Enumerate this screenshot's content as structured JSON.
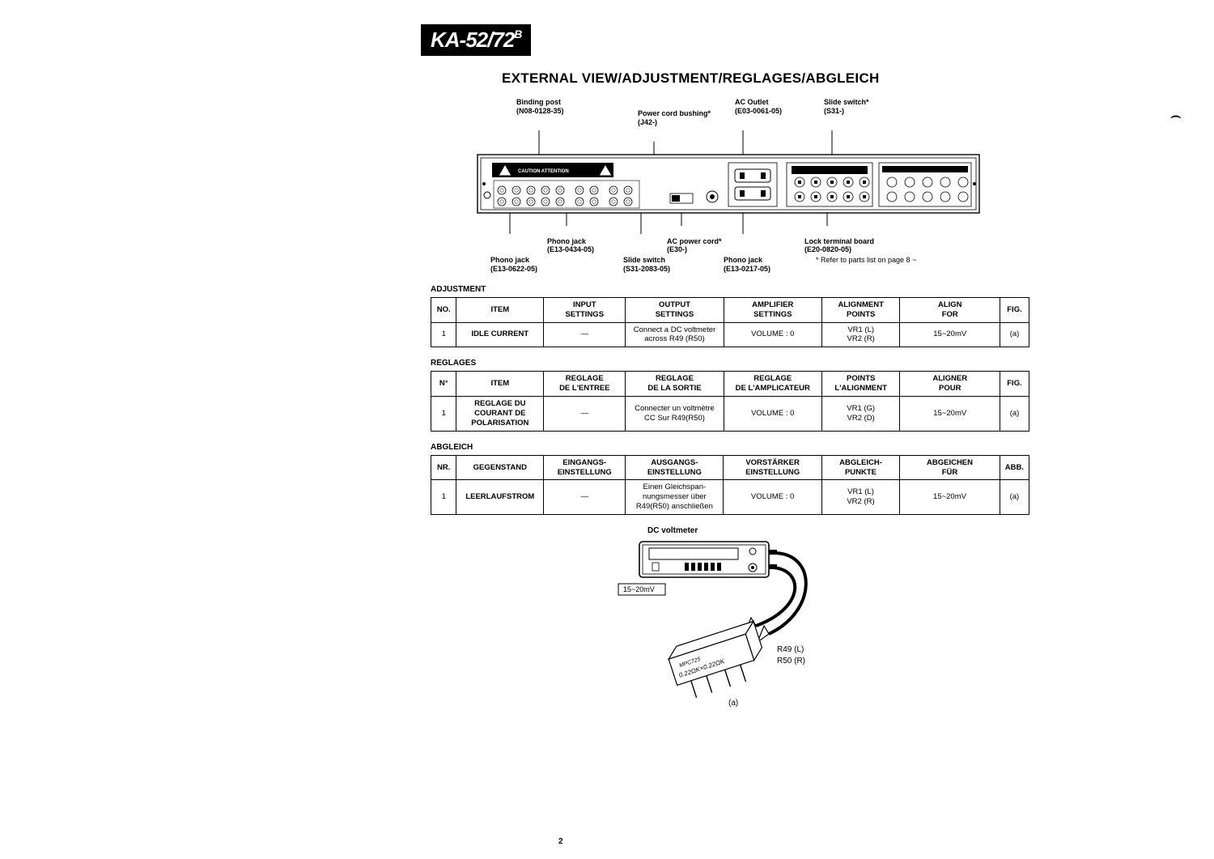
{
  "model_badge": "KA-52/72",
  "main_title": "EXTERNAL VIEW/ADJUSTMENT/REGLAGES/ABGLEICH",
  "page_number": "2",
  "footnote": "* Refer to parts list on page 8 ~",
  "rear_panel": {
    "top_callouts": [
      {
        "label": "Binding post",
        "part": "(N08-0128-35)"
      },
      {
        "label": "Power cord bushing*",
        "part": "(J42-)"
      },
      {
        "label": "AC Outlet",
        "part": "(E03-0061-05)"
      },
      {
        "label": "Slide switch*",
        "part": "(S31-)"
      }
    ],
    "bottom_callouts": [
      {
        "label": "Phono jack",
        "part": "(E13-0622-05)"
      },
      {
        "label": "Phono jack",
        "part": "(E13-0434-05)"
      },
      {
        "label": "Slide switch",
        "part": "(S31-2083-05)"
      },
      {
        "label": "AC power cord*",
        "part": "(E30-)"
      },
      {
        "label": "Phono jack",
        "part": "(E13-0217-05)"
      },
      {
        "label": "Lock terminal board",
        "part": "(E20-0820-05)"
      }
    ],
    "caution_label": "CAUTION",
    "attention_label": "ATTENTION"
  },
  "sections": [
    {
      "title": "ADJUSTMENT",
      "headers": [
        "NO.",
        "ITEM",
        "INPUT SETTINGS",
        "OUTPUT SETTINGS",
        "AMPLIFIER SETTINGS",
        "ALIGNMENT POINTS",
        "ALIGN FOR",
        "FIG."
      ],
      "rows": [
        {
          "no": "1",
          "item": "IDLE CURRENT",
          "in": "—",
          "out": "Connect a DC voltmeter across R49 (R50)",
          "amp": "VOLUME : 0",
          "pts": "VR1 (L)\nVR2 (R)",
          "for": "15~20mV",
          "fig": "(a)"
        }
      ]
    },
    {
      "title": "REGLAGES",
      "headers": [
        "N°",
        "ITEM",
        "REGLAGE DE L'ENTREE",
        "REGLAGE DE LA SORTIE",
        "REGLAGE DE L'AMPLICATEUR",
        "POINTS L'ALIGNMENT",
        "ALIGNER POUR",
        "FIG."
      ],
      "rows": [
        {
          "no": "1",
          "item": "REGLAGE DU COURANT DE POLARISATION",
          "in": "—",
          "out": "Connecter un voltmètre CC Sur R49(R50)",
          "amp": "VOLUME : 0",
          "pts": "VR1 (G)\nVR2 (D)",
          "for": "15~20mV",
          "fig": "(a)"
        }
      ]
    },
    {
      "title": "ABGLEICH",
      "headers": [
        "NR.",
        "GEGENSTAND",
        "EINGANGS-EINSTELLUNG",
        "AUSGANGS-EINSTELLUNG",
        "VORSTÄRKER EINSTELLUNG",
        "ABGLEICH-PUNKTE",
        "ABGEICHEN FÜR",
        "ABB."
      ],
      "rows": [
        {
          "no": "1",
          "item": "LEERLAUFSTROM",
          "in": "—",
          "out": "Einen Gleichspan-nungsmesser über R49(R50) anschließen",
          "amp": "VOLUME : 0",
          "pts": "VR1 (L)\nVR2 (R)",
          "for": "15~20mV",
          "fig": "(a)"
        }
      ]
    }
  ],
  "voltmeter_diagram": {
    "title": "DC voltmeter",
    "range_label": "15~20mV",
    "chip_text": "MPC725\n0.22ΩK×0.22ΩK",
    "resistor_labels": [
      "R49 (L)",
      "R50 (R)"
    ],
    "caption": "(a)"
  }
}
